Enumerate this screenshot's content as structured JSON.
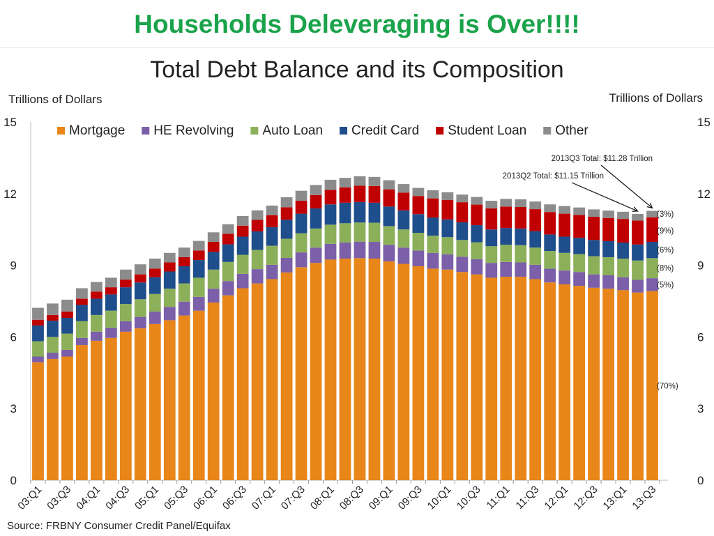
{
  "headline": "Households Deleveraging is Over!!!!",
  "chart_data": {
    "type": "bar",
    "stacked": true,
    "title": "Total Debt Balance and its Composition",
    "ylabel_left": "Trillions of Dollars",
    "ylabel_right": "Trillions of Dollars",
    "ylim": [
      0,
      15
    ],
    "yticks": [
      0,
      3,
      6,
      9,
      12,
      15
    ],
    "grid": false,
    "legend_position": "top",
    "x_tick_labels": [
      "03:Q1",
      "03:Q3",
      "04:Q1",
      "04:Q3",
      "05:Q1",
      "05:Q3",
      "06:Q1",
      "06:Q3",
      "07:Q1",
      "07:Q3",
      "08:Q1",
      "08:Q3",
      "09:Q1",
      "09:Q3",
      "10:Q1",
      "10:Q3",
      "11:Q1",
      "11:Q3",
      "12:Q1",
      "12:Q3",
      "13:Q1",
      "13:Q3"
    ],
    "categories": [
      "03:Q1",
      "03:Q2",
      "03:Q3",
      "03:Q4",
      "04:Q1",
      "04:Q2",
      "04:Q3",
      "04:Q4",
      "05:Q1",
      "05:Q2",
      "05:Q3",
      "05:Q4",
      "06:Q1",
      "06:Q2",
      "06:Q3",
      "06:Q4",
      "07:Q1",
      "07:Q2",
      "07:Q3",
      "07:Q4",
      "08:Q1",
      "08:Q2",
      "08:Q3",
      "08:Q4",
      "09:Q1",
      "09:Q2",
      "09:Q3",
      "09:Q4",
      "10:Q1",
      "10:Q2",
      "10:Q3",
      "10:Q4",
      "11:Q1",
      "11:Q2",
      "11:Q3",
      "11:Q4",
      "12:Q1",
      "12:Q2",
      "12:Q3",
      "12:Q4",
      "13:Q1",
      "13:Q2",
      "13:Q3"
    ],
    "series": [
      {
        "name": "Mortgage",
        "color": "#e8861a",
        "values": [
          4.94,
          5.08,
          5.18,
          5.66,
          5.84,
          5.96,
          6.22,
          6.36,
          6.54,
          6.7,
          6.9,
          7.1,
          7.44,
          7.74,
          8.04,
          8.24,
          8.42,
          8.7,
          8.92,
          9.1,
          9.24,
          9.28,
          9.3,
          9.28,
          9.16,
          9.06,
          8.96,
          8.86,
          8.82,
          8.72,
          8.62,
          8.48,
          8.52,
          8.52,
          8.42,
          8.28,
          8.2,
          8.14,
          8.06,
          8.02,
          7.96,
          7.86,
          7.92
        ]
      },
      {
        "name": "HE Revolving",
        "color": "#7b5fa8",
        "values": [
          0.24,
          0.26,
          0.28,
          0.3,
          0.38,
          0.42,
          0.44,
          0.48,
          0.52,
          0.56,
          0.58,
          0.58,
          0.58,
          0.6,
          0.6,
          0.6,
          0.6,
          0.61,
          0.62,
          0.64,
          0.66,
          0.68,
          0.69,
          0.7,
          0.7,
          0.68,
          0.66,
          0.66,
          0.64,
          0.64,
          0.64,
          0.62,
          0.62,
          0.6,
          0.6,
          0.58,
          0.58,
          0.58,
          0.56,
          0.56,
          0.54,
          0.53,
          0.54
        ]
      },
      {
        "name": "Auto Loan",
        "color": "#8cb05a",
        "values": [
          0.64,
          0.66,
          0.68,
          0.7,
          0.7,
          0.72,
          0.72,
          0.74,
          0.74,
          0.76,
          0.76,
          0.8,
          0.8,
          0.8,
          0.8,
          0.8,
          0.8,
          0.8,
          0.8,
          0.8,
          0.8,
          0.8,
          0.8,
          0.8,
          0.78,
          0.76,
          0.74,
          0.72,
          0.72,
          0.7,
          0.7,
          0.7,
          0.72,
          0.72,
          0.72,
          0.74,
          0.74,
          0.75,
          0.76,
          0.76,
          0.78,
          0.81,
          0.84
        ]
      },
      {
        "name": "Credit Card",
        "color": "#1f4e8c",
        "values": [
          0.66,
          0.68,
          0.66,
          0.68,
          0.68,
          0.68,
          0.7,
          0.7,
          0.7,
          0.72,
          0.72,
          0.74,
          0.74,
          0.74,
          0.76,
          0.78,
          0.78,
          0.8,
          0.82,
          0.84,
          0.85,
          0.86,
          0.86,
          0.84,
          0.82,
          0.8,
          0.78,
          0.76,
          0.74,
          0.74,
          0.72,
          0.7,
          0.7,
          0.7,
          0.69,
          0.69,
          0.68,
          0.68,
          0.68,
          0.67,
          0.67,
          0.67,
          0.68
        ]
      },
      {
        "name": "Student Loan",
        "color": "#c00000",
        "values": [
          0.24,
          0.24,
          0.26,
          0.26,
          0.3,
          0.3,
          0.32,
          0.34,
          0.36,
          0.38,
          0.38,
          0.4,
          0.42,
          0.44,
          0.46,
          0.48,
          0.5,
          0.52,
          0.54,
          0.56,
          0.61,
          0.64,
          0.68,
          0.7,
          0.72,
          0.74,
          0.76,
          0.8,
          0.82,
          0.84,
          0.86,
          0.88,
          0.9,
          0.9,
          0.92,
          0.94,
          0.96,
          0.96,
          0.97,
          0.97,
          0.99,
          1.0,
          1.03
        ]
      },
      {
        "name": "Other",
        "color": "#8c8c8c",
        "values": [
          0.5,
          0.48,
          0.5,
          0.44,
          0.4,
          0.4,
          0.42,
          0.42,
          0.42,
          0.4,
          0.4,
          0.4,
          0.4,
          0.4,
          0.4,
          0.4,
          0.4,
          0.42,
          0.42,
          0.42,
          0.42,
          0.4,
          0.4,
          0.38,
          0.38,
          0.36,
          0.34,
          0.34,
          0.32,
          0.32,
          0.32,
          0.32,
          0.32,
          0.32,
          0.32,
          0.32,
          0.32,
          0.31,
          0.31,
          0.31,
          0.3,
          0.28,
          0.27
        ]
      }
    ],
    "composition_labels": [
      {
        "series": "Other",
        "text": "(3%)"
      },
      {
        "series": "Student Loan",
        "text": "(9%)"
      },
      {
        "series": "Credit Card",
        "text": "(6%)"
      },
      {
        "series": "Auto Loan",
        "text": "(8%)"
      },
      {
        "series": "HE Revolving",
        "text": "(5%)"
      },
      {
        "series": "Mortgage",
        "text": "(70%)"
      }
    ],
    "annotations": [
      {
        "text": "2013Q3 Total: $11.28 Trillion",
        "target": "13:Q3"
      },
      {
        "text": "2013Q2 Total: $11.15 Trillion",
        "target": "13:Q2"
      }
    ],
    "source": "Source: FRBNY Consumer Credit Panel/Equifax"
  }
}
